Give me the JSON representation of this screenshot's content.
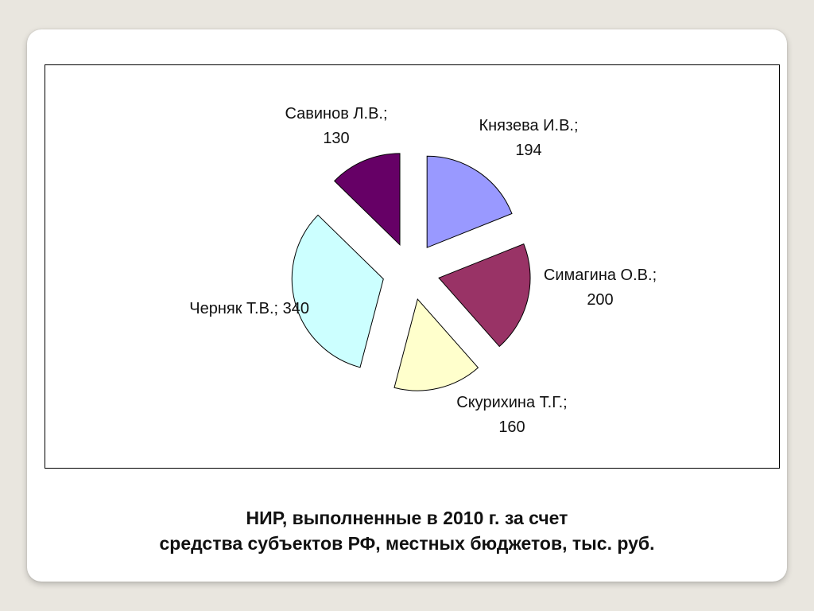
{
  "caption": {
    "line1": "НИР, выполненные в 2010 г. за счет",
    "line2": "средства субъектов РФ, местных бюджетов, тыс. руб."
  },
  "chart_data": {
    "type": "pie",
    "title": "",
    "exploded": true,
    "slices": [
      {
        "name": "Князева И.В.",
        "value": 194,
        "color": "#9999ff",
        "label_lines": [
          "Князева И.В.;",
          "194"
        ]
      },
      {
        "name": "Симагина О.В.",
        "value": 200,
        "color": "#993366",
        "label_lines": [
          "Симагина О.В.;",
          "200"
        ]
      },
      {
        "name": "Скурихина Т.Г.",
        "value": 160,
        "color": "#ffffcc",
        "label_lines": [
          "Скурихина Т.Г.;",
          "160"
        ]
      },
      {
        "name": "Черняк Т.В.",
        "value": 340,
        "color": "#ccffff",
        "label_lines": [
          "Черняк Т.В.; 340"
        ]
      },
      {
        "name": "Савинов Л.В.",
        "value": 130,
        "color": "#660066",
        "label_lines": [
          "Савинов Л.В.;",
          "130"
        ]
      }
    ]
  }
}
